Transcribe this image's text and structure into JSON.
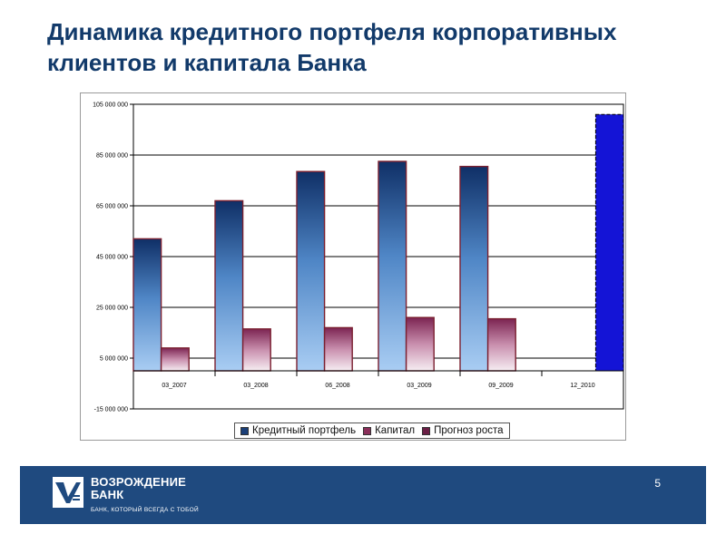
{
  "slide": {
    "title": "Динамика кредитного портфеля корпоративных клиентов и капитала Банка",
    "page_number": "5"
  },
  "footer": {
    "brand_line1": "ВОЗРОЖДЕНИЕ",
    "brand_line2": "БАНК",
    "tagline": "БАНК, КОТОРЫЙ ВСЕГДА С ТОБОЙ",
    "band_color": "#1f4a7f"
  },
  "chart_data": {
    "type": "bar",
    "title": "",
    "xlabel": "",
    "ylabel": "",
    "ylim": [
      -15000000,
      105000000
    ],
    "yticks": [
      -15000000,
      5000000,
      25000000,
      45000000,
      65000000,
      85000000,
      105000000
    ],
    "ytick_labels": [
      "-15 000 000",
      "5 000 000",
      "25 000 000",
      "45 000 000",
      "65 000 000",
      "85 000 000",
      "105 000 000"
    ],
    "categories": [
      "03_2007",
      "03_2008",
      "06_2008",
      "03_2009",
      "09_2009",
      "12_2010"
    ],
    "grid": "horizontal",
    "legend_position": "bottom",
    "series": [
      {
        "name": "Кредитный портфель",
        "values": [
          52000000,
          67000000,
          78500000,
          82500000,
          80500000,
          null
        ],
        "color": "#1b3f78"
      },
      {
        "name": "Капитал",
        "values": [
          9000000,
          16500000,
          17000000,
          21000000,
          20500000,
          null
        ],
        "color": "#8a2f5a"
      },
      {
        "name": "Прогноз роста",
        "values": [
          null,
          null,
          null,
          null,
          null,
          101000000
        ],
        "color": "#1414d6"
      }
    ]
  }
}
